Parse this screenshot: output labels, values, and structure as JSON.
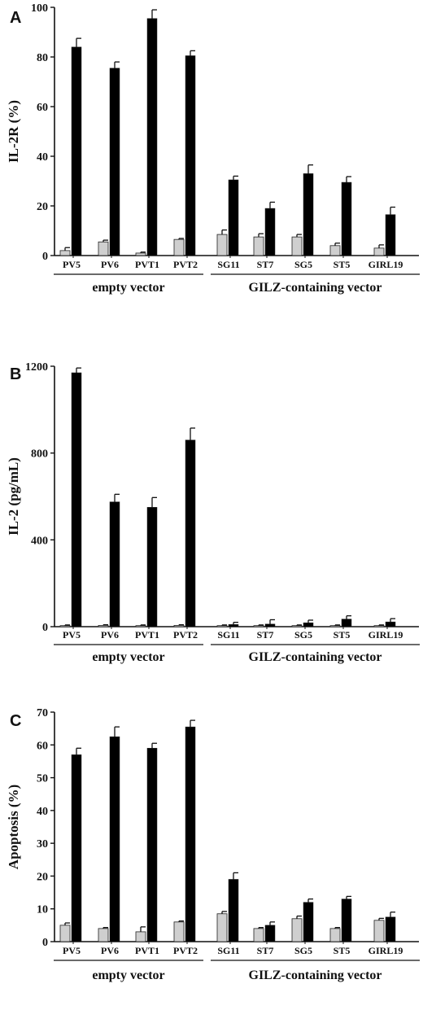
{
  "chart_data": [
    {
      "panel_letter": "A",
      "type": "bar",
      "ylabel": "IL-2R (%)",
      "ylim": [
        0,
        100
      ],
      "yticks": [
        "0",
        "20",
        "40",
        "60",
        "80",
        "100"
      ],
      "ytick_values": [
        0,
        20,
        40,
        60,
        80,
        100
      ],
      "categories": [
        "PV5",
        "PV6",
        "PVT1",
        "PVT2",
        "SG11",
        "ST7",
        "SG5",
        "ST5",
        "GIRL19"
      ],
      "groups": [
        {
          "label": "empty vector",
          "first": 0,
          "last": 3
        },
        {
          "label": "GILZ-containing vector",
          "first": 4,
          "last": 8
        }
      ],
      "series": [
        {
          "color": "#cfcfcf",
          "values": [
            2,
            5.5,
            1,
            6.5,
            8.5,
            7.5,
            7.5,
            4,
            3
          ],
          "errors": [
            1.2,
            0.7,
            0.4,
            0.4,
            1.8,
            1.3,
            1.0,
            1.0,
            1.3
          ]
        },
        {
          "color": "#000000",
          "values": [
            84,
            75.5,
            95.5,
            80.5,
            30.5,
            19,
            33,
            29.5,
            16.5
          ],
          "errors": [
            3.5,
            2.5,
            3.5,
            2.0,
            1.5,
            2.5,
            3.5,
            2.3,
            3.0
          ]
        }
      ]
    },
    {
      "panel_letter": "B",
      "type": "bar",
      "ylabel": "IL-2 (pg/mL)",
      "ylim": [
        0,
        1200
      ],
      "yticks": [
        "0",
        "400",
        "800",
        "1200"
      ],
      "ytick_values": [
        0,
        400,
        800,
        1200
      ],
      "categories": [
        "PV5",
        "PV6",
        "PVT1",
        "PVT2",
        "SG11",
        "ST7",
        "SG5",
        "ST5",
        "GIRL19"
      ],
      "groups": [
        {
          "label": "empty vector",
          "first": 0,
          "last": 3
        },
        {
          "label": "GILZ-containing vector",
          "first": 4,
          "last": 8
        }
      ],
      "series": [
        {
          "color": "#cfcfcf",
          "values": [
            5,
            6,
            5,
            6,
            5,
            5,
            5,
            5,
            5
          ],
          "errors": [
            3,
            3,
            3,
            3,
            3,
            3,
            3,
            3,
            3
          ]
        },
        {
          "color": "#000000",
          "values": [
            1170,
            575,
            550,
            860,
            10,
            12,
            18,
            35,
            22
          ],
          "errors": [
            22,
            35,
            45,
            55,
            10,
            20,
            12,
            15,
            15
          ]
        }
      ]
    },
    {
      "panel_letter": "C",
      "type": "bar",
      "ylabel": "Apoptosis (%)",
      "ylim": [
        0,
        70
      ],
      "yticks": [
        "0",
        "10",
        "20",
        "30",
        "40",
        "50",
        "60",
        "70"
      ],
      "ytick_values": [
        0,
        10,
        20,
        30,
        40,
        50,
        60,
        70
      ],
      "categories": [
        "PV5",
        "PV6",
        "PVT1",
        "PVT2",
        "SG11",
        "ST7",
        "SG5",
        "ST5",
        "GIRL19"
      ],
      "groups": [
        {
          "label": "empty vector",
          "first": 0,
          "last": 3
        },
        {
          "label": "GILZ-containing vector",
          "first": 4,
          "last": 8
        }
      ],
      "series": [
        {
          "color": "#cfcfcf",
          "values": [
            5,
            4,
            3,
            6,
            8.5,
            4,
            7,
            4,
            6.5
          ],
          "errors": [
            0.7,
            0.3,
            1.5,
            0.3,
            0.7,
            0.3,
            0.8,
            0.3,
            0.6
          ]
        },
        {
          "color": "#000000",
          "values": [
            57,
            62.5,
            59,
            65.5,
            19,
            5,
            12,
            13,
            7.5
          ],
          "errors": [
            2.0,
            3.0,
            1.5,
            2.0,
            2.0,
            1.0,
            1.0,
            0.8,
            1.5
          ]
        }
      ]
    }
  ]
}
